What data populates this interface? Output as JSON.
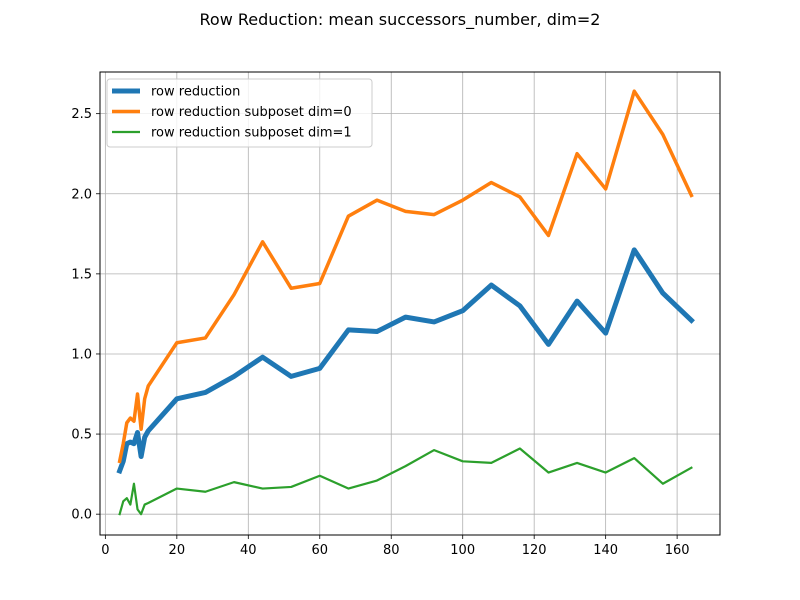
{
  "chart_data": {
    "type": "line",
    "title": "Row Reduction: mean successors_number, dim=2",
    "xlabel": "",
    "ylabel": "",
    "xlim": [
      -1.5,
      172
    ],
    "ylim": [
      -0.13,
      2.76
    ],
    "xticks": [
      0,
      20,
      40,
      60,
      80,
      100,
      120,
      140,
      160
    ],
    "xtick_labels": [
      "0",
      "20",
      "40",
      "60",
      "80",
      "100",
      "120",
      "140",
      "160"
    ],
    "yticks": [
      0.0,
      0.5,
      1.0,
      1.5,
      2.0,
      2.5
    ],
    "ytick_labels": [
      "0.0",
      "0.5",
      "1.0",
      "1.5",
      "2.0",
      "2.5"
    ],
    "grid": true,
    "legend_position": "upper-left",
    "series": [
      {
        "name": "row reduction",
        "color": "#1f77b4",
        "x": [
          4,
          5,
          6,
          7,
          8,
          9,
          10,
          11,
          12,
          20,
          28,
          36,
          44,
          52,
          60,
          68,
          76,
          84,
          92,
          100,
          108,
          116,
          124,
          132,
          140,
          148,
          156,
          164
        ],
        "y": [
          0.27,
          0.33,
          0.44,
          0.45,
          0.44,
          0.51,
          0.36,
          0.48,
          0.52,
          0.72,
          0.76,
          0.86,
          0.98,
          0.86,
          0.91,
          1.15,
          1.14,
          1.23,
          1.2,
          1.27,
          1.43,
          1.3,
          1.06,
          1.33,
          1.13,
          1.65,
          1.38,
          1.21
        ]
      },
      {
        "name": "row reduction subposet dim=0",
        "color": "#ff7f0e",
        "x": [
          4,
          5,
          6,
          7,
          8,
          9,
          10,
          11,
          12,
          20,
          28,
          36,
          44,
          52,
          60,
          68,
          76,
          84,
          92,
          100,
          108,
          116,
          124,
          132,
          140,
          148,
          156,
          164
        ],
        "y": [
          0.33,
          0.44,
          0.57,
          0.6,
          0.58,
          0.75,
          0.53,
          0.72,
          0.8,
          1.07,
          1.1,
          1.37,
          1.7,
          1.41,
          1.44,
          1.86,
          1.96,
          1.89,
          1.87,
          1.96,
          2.07,
          1.98,
          1.74,
          2.25,
          2.03,
          2.64,
          2.37,
          1.99
        ]
      },
      {
        "name": "row reduction subposet dim=1",
        "color": "#2ca02c",
        "x": [
          4,
          5,
          6,
          7,
          8,
          9,
          10,
          11,
          12,
          20,
          28,
          36,
          44,
          52,
          60,
          68,
          76,
          84,
          92,
          100,
          108,
          116,
          124,
          132,
          140,
          148,
          156,
          164
        ],
        "y": [
          0.0,
          0.08,
          0.1,
          0.06,
          0.19,
          0.03,
          0.0,
          0.06,
          0.07,
          0.16,
          0.14,
          0.2,
          0.16,
          0.17,
          0.24,
          0.16,
          0.21,
          0.3,
          0.4,
          0.33,
          0.32,
          0.41,
          0.26,
          0.32,
          0.26,
          0.35,
          0.19,
          0.29
        ]
      }
    ]
  }
}
